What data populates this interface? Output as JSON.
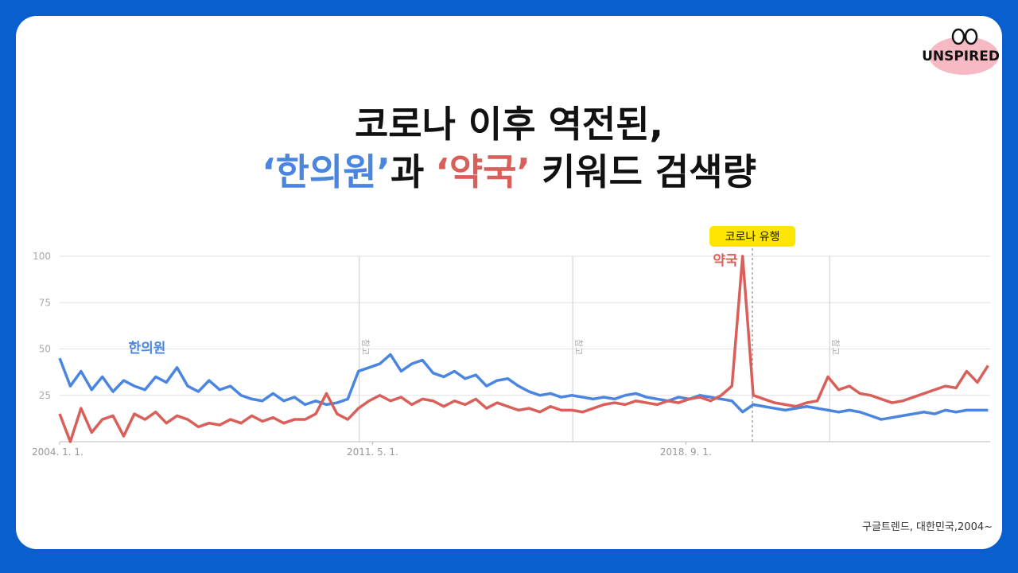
{
  "logo": "UNSPIRED",
  "header": {
    "title_line1": "코로나 이후 역전된,",
    "title_line2": [
      {
        "text": "‘한의원’",
        "color": "#4a86e0"
      },
      {
        "text": "과",
        "color": "#111111"
      },
      {
        "text": "‘약국’",
        "color": "#d9605a"
      },
      {
        "text": "키워드 검색량",
        "color": "#111111"
      }
    ]
  },
  "source": "구글트렌드, 대한민국,2004~",
  "chart_data": {
    "type": "line",
    "x": [
      2004,
      2004.25,
      2004.5,
      2004.75,
      2005,
      2005.25,
      2005.5,
      2005.75,
      2006,
      2006.25,
      2006.5,
      2006.75,
      2007,
      2007.25,
      2007.5,
      2007.75,
      2008,
      2008.25,
      2008.5,
      2008.75,
      2009,
      2009.25,
      2009.5,
      2009.75,
      2010,
      2010.25,
      2010.5,
      2010.75,
      2011,
      2011.25,
      2011.5,
      2011.75,
      2012,
      2012.25,
      2012.5,
      2012.75,
      2013,
      2013.25,
      2013.5,
      2013.75,
      2014,
      2014.25,
      2014.5,
      2014.75,
      2015,
      2015.25,
      2015.5,
      2015.75,
      2016,
      2016.25,
      2016.5,
      2016.75,
      2017,
      2017.25,
      2017.5,
      2017.75,
      2018,
      2018.25,
      2018.5,
      2018.75,
      2019,
      2019.25,
      2019.5,
      2019.75,
      2020,
      2020.25,
      2020.5,
      2020.75,
      2021,
      2021.25,
      2021.5,
      2021.75,
      2022,
      2022.25,
      2022.5,
      2022.75,
      2023,
      2023.25,
      2023.5,
      2023.75,
      2024,
      2024.25,
      2024.5,
      2024.75,
      2025,
      2025.25,
      2025.5,
      2025.75
    ],
    "series": [
      {
        "name": "한의원",
        "color": "#4a86e0",
        "values": [
          45,
          30,
          38,
          28,
          35,
          27,
          33,
          30,
          28,
          35,
          32,
          40,
          30,
          27,
          33,
          28,
          30,
          25,
          23,
          22,
          26,
          22,
          24,
          20,
          22,
          20,
          21,
          23,
          38,
          40,
          42,
          47,
          38,
          42,
          44,
          37,
          35,
          38,
          34,
          36,
          30,
          33,
          34,
          30,
          27,
          25,
          26,
          24,
          25,
          24,
          23,
          24,
          23,
          25,
          26,
          24,
          23,
          22,
          24,
          23,
          25,
          24,
          23,
          22,
          16,
          20,
          19,
          18,
          17,
          18,
          19,
          18,
          17,
          16,
          17,
          16,
          14,
          12,
          13,
          14,
          15,
          16,
          15,
          17,
          16,
          17,
          17,
          17
        ]
      },
      {
        "name": "약국",
        "color": "#d9605a",
        "values": [
          15,
          0,
          18,
          5,
          12,
          14,
          3,
          15,
          12,
          16,
          10,
          14,
          12,
          8,
          10,
          9,
          12,
          10,
          14,
          11,
          13,
          10,
          12,
          12,
          15,
          26,
          15,
          12,
          18,
          22,
          25,
          22,
          24,
          20,
          23,
          22,
          19,
          22,
          20,
          23,
          18,
          21,
          19,
          17,
          18,
          16,
          19,
          17,
          17,
          16,
          18,
          20,
          21,
          20,
          22,
          21,
          20,
          22,
          21,
          23,
          24,
          22,
          25,
          30,
          100,
          25,
          23,
          21,
          20,
          19,
          21,
          22,
          35,
          28,
          30,
          26,
          25,
          23,
          21,
          22,
          24,
          26,
          28,
          30,
          29,
          38,
          32,
          41
        ]
      }
    ],
    "xlim": [
      2004,
      2025.8
    ],
    "xticks": [
      {
        "value": 2004,
        "label": "2004. 1. 1."
      },
      {
        "value": 2011.33,
        "label": "2011. 5. 1."
      },
      {
        "value": 2018.67,
        "label": "2018. 9. 1."
      }
    ],
    "ylim": [
      0,
      100
    ],
    "yticks": [
      25,
      50,
      75,
      100
    ],
    "grid": true,
    "notes": [
      {
        "x": 2011.02,
        "label": "참고"
      },
      {
        "x": 2016.02,
        "label": "참고"
      },
      {
        "x": 2022.04,
        "label": "참고"
      }
    ],
    "event": {
      "x": 2020.23,
      "label": "코로나 유행",
      "color": "#ffe600"
    }
  }
}
